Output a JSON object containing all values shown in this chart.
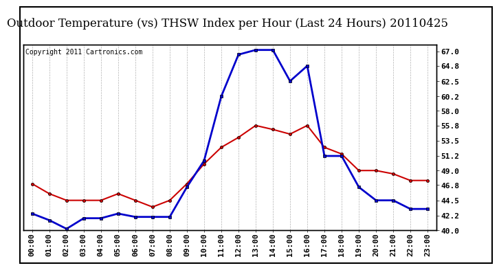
{
  "title": "Outdoor Temperature (vs) THSW Index per Hour (Last 24 Hours) 20110425",
  "copyright": "Copyright 2011 Cartronics.com",
  "x_labels": [
    "00:00",
    "01:00",
    "02:00",
    "03:00",
    "04:00",
    "05:00",
    "06:00",
    "07:00",
    "08:00",
    "09:00",
    "10:00",
    "11:00",
    "12:00",
    "13:00",
    "14:00",
    "15:00",
    "16:00",
    "17:00",
    "18:00",
    "19:00",
    "20:00",
    "21:00",
    "22:00",
    "23:00"
  ],
  "temp_data": [
    47.0,
    45.5,
    44.5,
    44.5,
    44.5,
    45.5,
    44.5,
    43.5,
    44.5,
    47.0,
    50.0,
    52.5,
    54.0,
    55.8,
    55.2,
    54.5,
    55.8,
    52.5,
    51.5,
    49.0,
    49.0,
    48.5,
    47.5,
    47.5
  ],
  "thsw_data": [
    42.5,
    41.5,
    40.2,
    41.8,
    41.8,
    42.5,
    42.0,
    42.0,
    42.0,
    46.5,
    50.5,
    60.2,
    66.5,
    67.2,
    67.2,
    62.5,
    64.8,
    51.2,
    51.2,
    46.5,
    44.5,
    44.5,
    43.2,
    43.2
  ],
  "temp_color": "#cc0000",
  "thsw_color": "#0000cc",
  "ylim": [
    40.0,
    68.0
  ],
  "y_ticks": [
    40.0,
    42.2,
    44.5,
    46.8,
    49.0,
    51.2,
    53.5,
    55.8,
    58.0,
    60.2,
    62.5,
    64.8,
    67.0
  ],
  "bg_color": "#ffffff",
  "grid_color": "#aaaaaa",
  "title_fontsize": 12,
  "tick_fontsize": 8,
  "copyright_fontsize": 7
}
